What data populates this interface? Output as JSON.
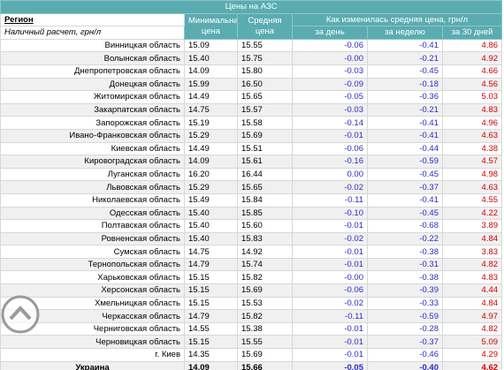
{
  "header": {
    "title": "Цены на АЗС",
    "region": "Регион",
    "note": "Наличный расчет, грн/л",
    "min": "Минимальная цена",
    "avg": "Средняя цена",
    "change": "Как изменилась средняя цена, грн/л",
    "day": "за день",
    "week": "за неделю",
    "month": "за 30 дней"
  },
  "table": {
    "rows": [
      [
        "Винницкая область",
        "15.09",
        "15.55",
        "-0.06",
        "-0.41",
        "4.86"
      ],
      [
        "Волынская область",
        "15.40",
        "15.75",
        "-0.00",
        "-0.21",
        "4.92"
      ],
      [
        "Днепропетровская область",
        "14.09",
        "15.80",
        "-0.03",
        "-0.45",
        "4.66"
      ],
      [
        "Донецкая область",
        "15.99",
        "16.50",
        "-0.09",
        "-0.18",
        "4.56"
      ],
      [
        "Житомирская область",
        "14.49",
        "15.65",
        "-0.05",
        "-0.36",
        "5.03"
      ],
      [
        "Закарпатская область",
        "14.75",
        "15.57",
        "-0.03",
        "-0.21",
        "4.83"
      ],
      [
        "Запорожская область",
        "15.19",
        "15.58",
        "-0.14",
        "-0.41",
        "4.96"
      ],
      [
        "Ивано-Франковская область",
        "15.29",
        "15.69",
        "-0.01",
        "-0.41",
        "4.63"
      ],
      [
        "Киевская область",
        "14.49",
        "15.51",
        "-0.06",
        "-0.44",
        "4.38"
      ],
      [
        "Кировоградская область",
        "14.09",
        "15.61",
        "-0.16",
        "-0.59",
        "4.57"
      ],
      [
        "Луганская область",
        "16.20",
        "16.44",
        "0.00",
        "-0.45",
        "4.98"
      ],
      [
        "Львовская область",
        "15.29",
        "15.65",
        "-0.02",
        "-0.37",
        "4.63"
      ],
      [
        "Николаевская область",
        "15.49",
        "15.84",
        "-0.11",
        "-0.41",
        "4.55"
      ],
      [
        "Одесская область",
        "15.40",
        "15.85",
        "-0.10",
        "-0.45",
        "4.22"
      ],
      [
        "Полтавская область",
        "15.40",
        "15.60",
        "-0.01",
        "-0.68",
        "3.89"
      ],
      [
        "Ровненская область",
        "15.40",
        "15.83",
        "-0.02",
        "-0.22",
        "4.84"
      ],
      [
        "Сумская область",
        "14.75",
        "14.92",
        "-0.01",
        "-0.38",
        "3.83"
      ],
      [
        "Тернопольская область",
        "14.79",
        "15.74",
        "-0.01",
        "-0.31",
        "4.82"
      ],
      [
        "Харьковская область",
        "15.15",
        "15.82",
        "-0.00",
        "-0.38",
        "4.83"
      ],
      [
        "Херсонская область",
        "15.15",
        "15.69",
        "-0.06",
        "-0.39",
        "4.44"
      ],
      [
        "Хмельницкая область",
        "15.15",
        "15.53",
        "-0.02",
        "-0.33",
        "4.84"
      ],
      [
        "Черкасская область",
        "14.79",
        "15.82",
        "-0.11",
        "-0.59",
        "4.97"
      ],
      [
        "Черниговская область",
        "14.55",
        "15.38",
        "-0.01",
        "-0.28",
        "4.82"
      ],
      [
        "Черновицкая область",
        "15.15",
        "15.55",
        "-0.01",
        "-0.37",
        "5.09"
      ],
      [
        "г. Киев",
        "14.35",
        "15.69",
        "-0.01",
        "-0.46",
        "4.29"
      ],
      [
        "Украина",
        "14.09",
        "15.66",
        "-0.05",
        "-0.40",
        "4.62"
      ]
    ]
  }
}
